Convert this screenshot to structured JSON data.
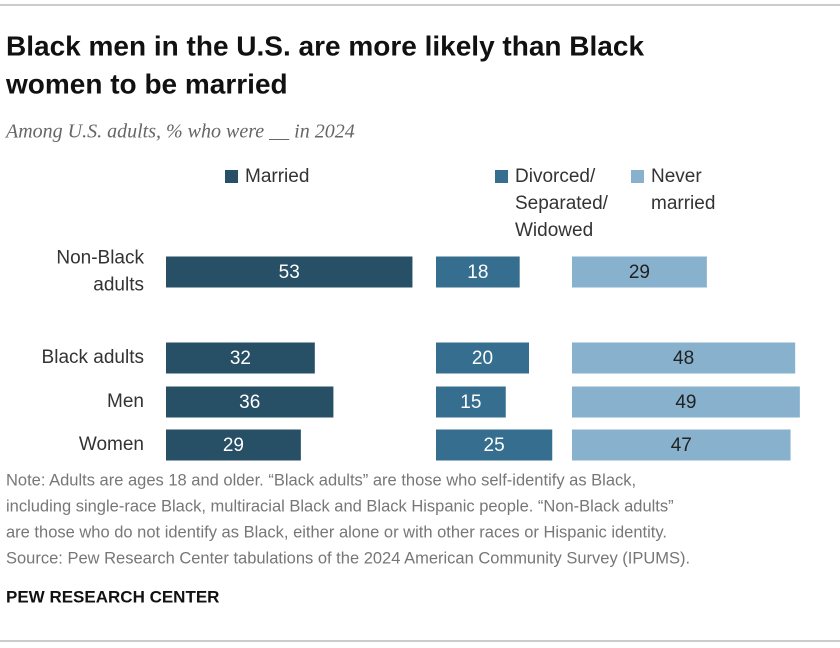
{
  "chart_data": {
    "type": "bar",
    "title": [
      "Black men in the U.S. are more likely than Black",
      "women to be married"
    ],
    "subtitle": "Among U.S. adults, % who were __ in 2024",
    "categories": [
      "Non-Black adults",
      "Black adults",
      "Men",
      "Women"
    ],
    "series": [
      {
        "name": "Married",
        "color": "#274f66",
        "values": [
          53,
          32,
          36,
          29
        ]
      },
      {
        "name": "Divorced/Separated/Widowed",
        "color": "#356e8f",
        "values": [
          18,
          20,
          15,
          25
        ]
      },
      {
        "name": "Never married",
        "color": "#87b1cd",
        "values": [
          29,
          48,
          49,
          47
        ]
      }
    ],
    "note": [
      "Note: Adults are ages 18 and older. “Black adults” are those who self-identify as Black,",
      "including single-race Black, multiracial Black and Black Hispanic people. “Non-Black adults”",
      "are those who do not identify as Black, either alone or with other races or Hispanic identity.",
      "Source: Pew Research Center tabulations of the 2024 American Community Survey (IPUMS)."
    ],
    "source": "PEW RESEARCH CENTER"
  }
}
